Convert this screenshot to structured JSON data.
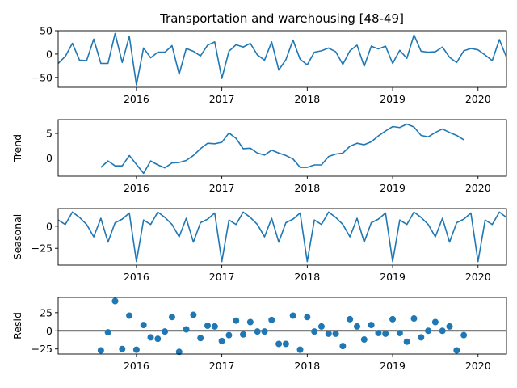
{
  "chart_data": {
    "type": "line",
    "title": "Transportation and warehousing  [48-49]",
    "color": "#1f77b4",
    "x_start": "2015-02",
    "x_end": "2020-05",
    "x_ticks": [
      {
        "label": "2016",
        "value": "2016-01"
      },
      {
        "label": "2017",
        "value": "2017-01"
      },
      {
        "label": "2018",
        "value": "2018-01"
      },
      {
        "label": "2019",
        "value": "2019-01"
      },
      {
        "label": "2020",
        "value": "2020-01"
      }
    ],
    "panels": [
      {
        "name": "observed",
        "type": "line",
        "ylabel": "",
        "ylim": [
          -71,
          50
        ],
        "yticks": [
          -50,
          0,
          50
        ],
        "tick_labels": [
          "−50",
          "0",
          "50"
        ],
        "start": "2015-02",
        "values": [
          -20,
          -5,
          23,
          -13,
          -14,
          32,
          -20,
          -20,
          44,
          -18,
          38,
          -66,
          13,
          -8,
          4,
          4,
          18,
          -43,
          12,
          6,
          -4,
          19,
          26,
          -52,
          6,
          20,
          15,
          23,
          -2,
          -13,
          26,
          -34,
          -12,
          30,
          -11,
          -23,
          4,
          7,
          13,
          5,
          -22,
          7,
          19,
          -26,
          17,
          11,
          17,
          -20,
          8,
          -9,
          41,
          6,
          4,
          5,
          15,
          -7,
          -18,
          7,
          12,
          9,
          -2,
          -14,
          31,
          -7
        ]
      },
      {
        "name": "trend",
        "type": "line",
        "ylabel": "Trend",
        "ylim": [
          -3.7,
          7.8
        ],
        "yticks": [
          0,
          5
        ],
        "tick_labels": [
          "0",
          "5"
        ],
        "start": "2015-08",
        "values": [
          -1.9,
          -0.6,
          -1.6,
          -1.6,
          0.5,
          -1.3,
          -3.1,
          -0.6,
          -1.4,
          -2.0,
          -1.0,
          -0.9,
          -0.5,
          0.5,
          1.9,
          3.0,
          2.9,
          3.2,
          5.1,
          4.0,
          1.9,
          2.0,
          1.0,
          0.6,
          1.6,
          1.0,
          0.5,
          -0.2,
          -1.9,
          -1.9,
          -1.4,
          -1.4,
          0.3,
          0.8,
          1.0,
          2.4,
          3.0,
          2.7,
          3.3,
          4.5,
          5.5,
          6.4,
          6.2,
          6.9,
          6.3,
          4.6,
          4.3,
          5.2,
          5.9,
          5.2,
          4.6,
          3.7
        ]
      },
      {
        "name": "seasonal",
        "type": "line",
        "ylabel": "Seasonal",
        "ylim": [
          -44,
          20
        ],
        "yticks": [
          -25,
          0
        ],
        "tick_labels": [
          "−25",
          "0"
        ],
        "start": "2015-02",
        "pattern_from_jan": [
          -40,
          7,
          2,
          16,
          10,
          2,
          -12,
          9,
          -18,
          4,
          8,
          15
        ],
        "values": [
          7,
          2,
          16,
          10,
          2,
          -12,
          9,
          -18,
          4,
          8,
          15,
          -40,
          7,
          2,
          16,
          10,
          2,
          -12,
          9,
          -18,
          4,
          8,
          15,
          -40,
          7,
          2,
          16,
          10,
          2,
          -12,
          9,
          -18,
          4,
          8,
          15,
          -40,
          7,
          2,
          16,
          10,
          2,
          -12,
          9,
          -18,
          4,
          8,
          15,
          -40,
          7,
          2,
          16,
          10,
          2,
          -12,
          9,
          -18,
          4,
          8,
          15,
          -40,
          7,
          2,
          16,
          10
        ]
      },
      {
        "name": "resid",
        "type": "scatter",
        "ylabel": "Resid",
        "ylim": [
          -32,
          46
        ],
        "yticks": [
          -25,
          0,
          25
        ],
        "tick_labels": [
          "−25",
          "0",
          "25"
        ],
        "zero_line": true,
        "start": "2015-08",
        "values": [
          -27,
          -2,
          41,
          -25,
          21,
          -26,
          8,
          -9,
          -11,
          -1,
          19,
          -29,
          2,
          22,
          -10,
          7,
          6,
          -14,
          -6,
          14,
          -5,
          12,
          -1,
          -1,
          15,
          -18,
          -18,
          21,
          -26,
          19,
          -1,
          6,
          -4,
          -4,
          -21,
          16,
          6,
          -12,
          8,
          -3,
          -4,
          16,
          -3,
          -15,
          17,
          -9,
          0,
          12,
          0,
          6,
          -27,
          -6
        ]
      }
    ]
  }
}
